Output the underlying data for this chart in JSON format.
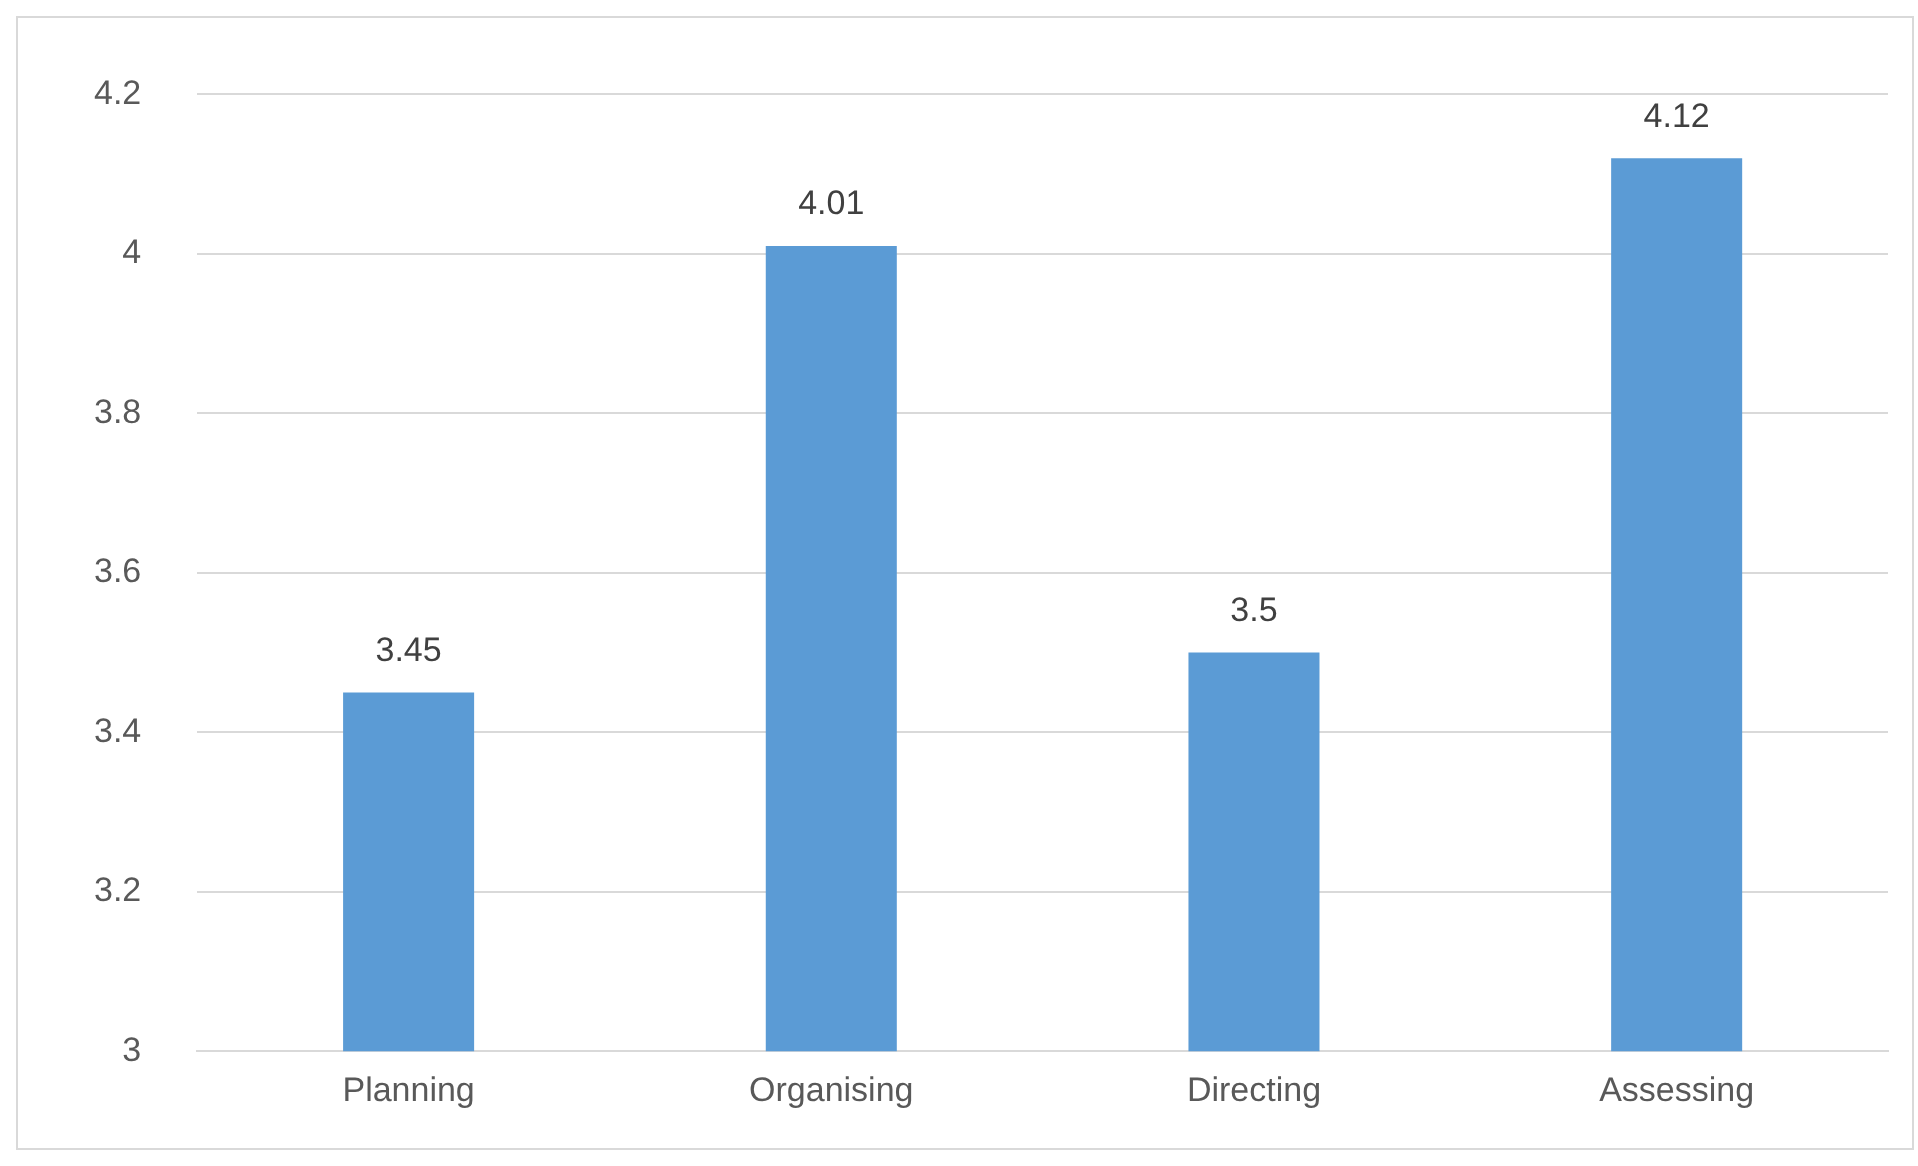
{
  "chart_data": {
    "type": "bar",
    "categories": [
      "Planning",
      "Organising",
      "Directing",
      "Assessing"
    ],
    "values": [
      3.45,
      4.01,
      3.5,
      4.12
    ],
    "color": "#5b9bd5",
    "ylim": [
      3,
      4.2
    ],
    "yticks": [
      {
        "value": 3,
        "label": "3"
      },
      {
        "value": 3.2,
        "label": "3.2"
      },
      {
        "value": 3.4,
        "label": "3.4"
      },
      {
        "value": 3.6,
        "label": "3.6"
      },
      {
        "value": 3.8,
        "label": "3.8"
      },
      {
        "value": 4,
        "label": "4"
      },
      {
        "value": 4.2,
        "label": "4.2"
      }
    ],
    "grid": "y",
    "data_labels": true,
    "legend": false
  }
}
